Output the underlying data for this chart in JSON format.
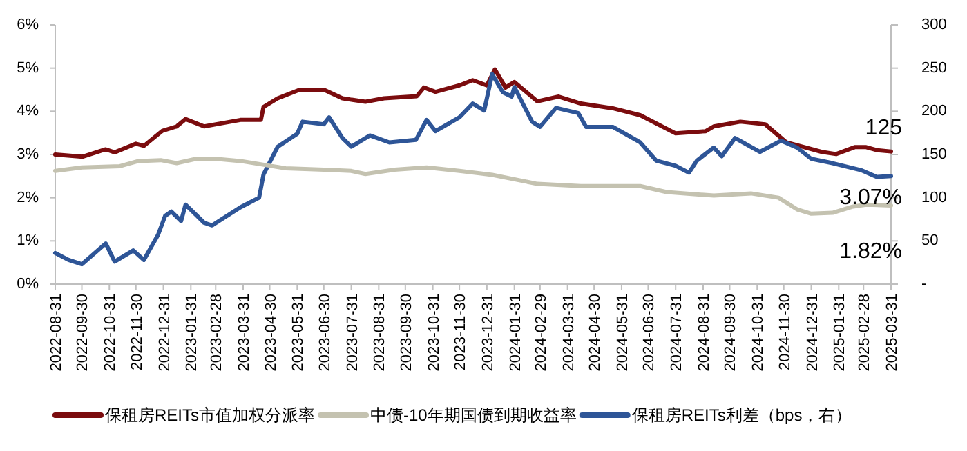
{
  "chart_data": {
    "type": "line",
    "xlim": [
      "2022-08-31",
      "2025-03-31"
    ],
    "xticks": [
      "2022-08-31",
      "2022-09-30",
      "2022-10-31",
      "2022-11-30",
      "2022-12-31",
      "2023-01-31",
      "2023-02-28",
      "2023-03-31",
      "2023-04-30",
      "2023-05-31",
      "2023-06-30",
      "2023-07-31",
      "2023-08-31",
      "2023-09-30",
      "2023-10-31",
      "2023-11-30",
      "2023-12-31",
      "2024-01-31",
      "2024-02-29",
      "2024-03-31",
      "2024-04-30",
      "2024-05-31",
      "2024-06-30",
      "2024-07-31",
      "2024-08-31",
      "2024-09-30",
      "2024-10-31",
      "2024-11-30",
      "2024-12-31",
      "2025-01-31",
      "2025-02-28",
      "2025-03-31"
    ],
    "ylim": [
      0,
      6
    ],
    "yticks": [
      {
        "value": 0,
        "label": "0%"
      },
      {
        "value": 1,
        "label": "1%"
      },
      {
        "value": 2,
        "label": "2%"
      },
      {
        "value": 3,
        "label": "3%"
      },
      {
        "value": 4,
        "label": "4%"
      },
      {
        "value": 5,
        "label": "5%"
      },
      {
        "value": 6,
        "label": "6%"
      }
    ],
    "y2lim": [
      0,
      300
    ],
    "y2ticks": [
      {
        "value": 0,
        "label": "-"
      },
      50,
      100,
      150,
      200,
      250,
      300
    ],
    "legend": "bottom",
    "grid": false,
    "series": [
      {
        "name": "保租房REITs市值加权分派率",
        "color": "#7b0c0e",
        "x": [
          "2022-08-31",
          "2022-10-01",
          "2022-10-27",
          "2022-11-06",
          "2022-11-30",
          "2022-12-09",
          "2022-12-30",
          "2023-01-15",
          "2023-01-25",
          "2023-02-15",
          "2023-03-06",
          "2023-03-28",
          "2023-04-20",
          "2023-04-23",
          "2023-05-09",
          "2023-06-03",
          "2023-06-30",
          "2023-07-21",
          "2023-08-16",
          "2023-09-06",
          "2023-10-13",
          "2023-10-21",
          "2023-11-03",
          "2023-11-30",
          "2023-12-15",
          "2023-12-31",
          "2024-01-09",
          "2024-01-21",
          "2024-01-31",
          "2024-02-26",
          "2024-03-21",
          "2024-04-15",
          "2024-05-21",
          "2024-06-21",
          "2024-07-31",
          "2024-09-03",
          "2024-09-12",
          "2024-10-12",
          "2024-11-09",
          "2024-12-03",
          "2025-01-12",
          "2025-01-28",
          "2025-02-18",
          "2025-03-03",
          "2025-03-15",
          "2025-03-31"
        ],
        "values": [
          3.0,
          2.95,
          3.12,
          3.05,
          3.25,
          3.2,
          3.55,
          3.65,
          3.82,
          3.65,
          3.72,
          3.8,
          3.8,
          4.1,
          4.3,
          4.5,
          4.5,
          4.3,
          4.22,
          4.3,
          4.35,
          4.55,
          4.45,
          4.6,
          4.72,
          4.6,
          4.97,
          4.55,
          4.68,
          4.23,
          4.34,
          4.18,
          4.07,
          3.91,
          3.49,
          3.54,
          3.65,
          3.76,
          3.7,
          3.28,
          3.06,
          3.01,
          3.17,
          3.17,
          3.1,
          3.07
        ]
      },
      {
        "name": "中债-10年期国债到期收益率",
        "color": "#c4c2b0",
        "x": [
          "2022-08-31",
          "2022-09-30",
          "2022-11-12",
          "2022-12-03",
          "2022-12-28",
          "2023-01-15",
          "2023-02-06",
          "2023-02-28",
          "2023-03-28",
          "2023-04-27",
          "2023-05-18",
          "2023-06-30",
          "2023-07-31",
          "2023-08-16",
          "2023-09-18",
          "2023-10-24",
          "2023-11-30",
          "2024-01-06",
          "2024-02-26",
          "2024-04-15",
          "2024-06-21",
          "2024-07-21",
          "2024-09-12",
          "2024-10-24",
          "2024-11-24",
          "2024-12-15",
          "2024-12-31",
          "2025-01-24",
          "2025-02-15",
          "2025-03-03",
          "2025-03-31"
        ],
        "values": [
          2.62,
          2.7,
          2.73,
          2.85,
          2.87,
          2.8,
          2.9,
          2.9,
          2.85,
          2.75,
          2.68,
          2.65,
          2.62,
          2.55,
          2.65,
          2.7,
          2.62,
          2.53,
          2.32,
          2.27,
          2.27,
          2.13,
          2.05,
          2.1,
          2.0,
          1.73,
          1.63,
          1.65,
          1.79,
          1.84,
          1.82
        ]
      },
      {
        "name": "保租房REITs利差（bps，右）",
        "color": "#2e5597",
        "axis": "y2",
        "x": [
          "2022-08-31",
          "2022-09-15",
          "2022-09-30",
          "2022-10-27",
          "2022-11-06",
          "2022-11-27",
          "2022-12-09",
          "2022-12-25",
          "2023-01-02",
          "2023-01-09",
          "2023-01-20",
          "2023-01-25",
          "2023-02-15",
          "2023-02-24",
          "2023-03-28",
          "2023-04-18",
          "2023-04-23",
          "2023-05-09",
          "2023-05-31",
          "2023-06-06",
          "2023-06-30",
          "2023-07-06",
          "2023-07-21",
          "2023-07-31",
          "2023-08-21",
          "2023-09-12",
          "2023-10-12",
          "2023-10-24",
          "2023-11-03",
          "2023-11-30",
          "2023-12-15",
          "2023-12-28",
          "2024-01-06",
          "2024-01-18",
          "2024-01-28",
          "2024-01-31",
          "2024-02-20",
          "2024-02-29",
          "2024-03-18",
          "2024-04-12",
          "2024-04-21",
          "2024-05-21",
          "2024-06-21",
          "2024-07-09",
          "2024-07-31",
          "2024-08-15",
          "2024-08-24",
          "2024-09-12",
          "2024-09-21",
          "2024-10-06",
          "2024-11-03",
          "2024-11-27",
          "2024-12-15",
          "2024-12-31",
          "2025-01-24",
          "2025-02-25",
          "2025-03-15",
          "2025-03-31"
        ],
        "values": [
          36,
          28,
          23,
          47,
          26,
          39,
          28,
          57,
          79,
          84,
          73,
          92,
          71,
          68,
          89,
          100,
          127,
          159,
          174,
          188,
          185,
          193,
          169,
          159,
          172,
          164,
          167,
          190,
          177,
          193,
          209,
          201,
          243,
          222,
          217,
          228,
          188,
          182,
          204,
          198,
          182,
          182,
          164,
          143,
          137,
          129,
          143,
          158,
          148,
          169,
          153,
          166,
          158,
          145,
          140,
          132,
          124,
          125
        ]
      }
    ],
    "annotations": [
      {
        "text": "125",
        "x": "2025-03-31",
        "y": 2.5
      },
      {
        "text": "3.07%",
        "x": "2025-03-31",
        "y": 3.07
      },
      {
        "text": "1.82%",
        "x": "2025-03-31",
        "y": 1.82
      }
    ]
  }
}
